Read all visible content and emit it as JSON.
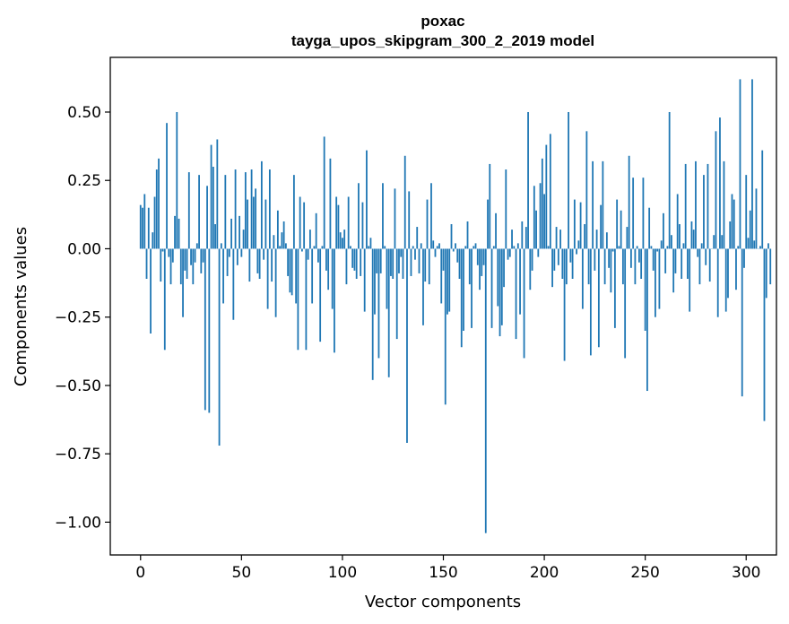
{
  "chart_data": {
    "type": "bar",
    "title": "poxac",
    "subtitle": "tayga_upos_skipgram_300_2_2019 model",
    "xlabel": "Vector components",
    "ylabel": "Components values",
    "xlim": [
      -15,
      315
    ],
    "ylim": [
      -1.12,
      0.7
    ],
    "xticks": [
      0,
      50,
      100,
      150,
      200,
      250,
      300
    ],
    "xtick_labels": [
      "0",
      "50",
      "100",
      "150",
      "200",
      "250",
      "300"
    ],
    "yticks": [
      0.5,
      0.25,
      0.0,
      -0.25,
      -0.5,
      -0.75,
      -1.0
    ],
    "ytick_labels": [
      "0.50",
      "0.25",
      "0.00",
      "−0.25",
      "−0.50",
      "−0.75",
      "−1.00"
    ],
    "bar_color": "#1f77b4",
    "grid": false,
    "values": [
      0.16,
      0.15,
      0.2,
      -0.11,
      0.15,
      -0.31,
      0.06,
      0.19,
      0.29,
      0.33,
      -0.12,
      -0.01,
      -0.37,
      0.46,
      -0.03,
      -0.13,
      -0.05,
      0.12,
      0.5,
      0.11,
      -0.13,
      -0.25,
      -0.08,
      -0.11,
      0.28,
      -0.06,
      -0.13,
      -0.05,
      0.02,
      0.27,
      -0.09,
      -0.05,
      -0.59,
      0.23,
      -0.6,
      0.38,
      0.3,
      0.09,
      0.4,
      -0.72,
      0.02,
      -0.2,
      0.27,
      -0.1,
      -0.03,
      0.11,
      -0.26,
      0.29,
      -0.06,
      0.12,
      -0.03,
      0.07,
      0.28,
      0.18,
      -0.12,
      0.29,
      0.19,
      0.22,
      -0.09,
      -0.11,
      0.32,
      -0.04,
      0.18,
      -0.22,
      0.29,
      -0.12,
      0.05,
      -0.25,
      0.14,
      0.01,
      0.06,
      0.1,
      0.02,
      -0.1,
      -0.16,
      -0.17,
      0.27,
      -0.2,
      -0.37,
      0.19,
      -0.01,
      0.17,
      -0.37,
      -0.04,
      0.07,
      -0.2,
      0.01,
      0.13,
      -0.05,
      -0.34,
      0.01,
      0.41,
      -0.08,
      -0.15,
      0.33,
      -0.22,
      -0.38,
      0.19,
      0.16,
      0.06,
      0.04,
      0.07,
      -0.13,
      0.19,
      0.01,
      -0.07,
      -0.08,
      -0.11,
      0.24,
      -0.1,
      0.17,
      -0.23,
      0.36,
      0.01,
      0.04,
      -0.48,
      -0.24,
      -0.09,
      -0.4,
      -0.09,
      0.24,
      0.01,
      -0.22,
      -0.47,
      -0.1,
      -0.11,
      0.22,
      -0.33,
      -0.09,
      -0.03,
      -0.11,
      0.34,
      -0.71,
      0.21,
      -0.1,
      0.01,
      -0.04,
      0.08,
      -0.09,
      0.02,
      -0.28,
      -0.12,
      0.18,
      -0.13,
      0.24,
      0.03,
      -0.03,
      0.01,
      0.02,
      -0.2,
      -0.08,
      -0.57,
      -0.24,
      -0.23,
      0.09,
      -0.01,
      0.02,
      -0.05,
      -0.11,
      -0.36,
      -0.3,
      0.01,
      0.1,
      -0.13,
      -0.29,
      0.01,
      0.02,
      -0.06,
      -0.15,
      -0.1,
      -0.06,
      -1.04,
      0.18,
      0.31,
      -0.29,
      0.01,
      0.13,
      -0.21,
      -0.32,
      -0.28,
      -0.14,
      0.29,
      -0.04,
      -0.03,
      0.07,
      0.01,
      -0.33,
      0.02,
      -0.24,
      0.1,
      -0.4,
      0.08,
      0.5,
      -0.15,
      -0.08,
      0.23,
      0.14,
      -0.03,
      0.24,
      0.33,
      0.2,
      0.38,
      0.01,
      0.42,
      -0.14,
      -0.08,
      0.08,
      -0.06,
      0.07,
      -0.11,
      -0.41,
      -0.13,
      0.5,
      -0.05,
      -0.11,
      0.18,
      -0.02,
      0.03,
      0.17,
      -0.22,
      0.09,
      0.43,
      -0.13,
      -0.39,
      0.32,
      -0.08,
      0.07,
      -0.36,
      0.16,
      0.32,
      -0.13,
      0.06,
      -0.07,
      -0.16,
      -0.01,
      -0.29,
      0.18,
      0.01,
      0.14,
      -0.13,
      -0.4,
      0.08,
      0.34,
      -0.07,
      0.26,
      -0.13,
      0.01,
      -0.05,
      -0.11,
      0.26,
      -0.3,
      -0.52,
      0.15,
      0.01,
      -0.08,
      -0.25,
      -0.01,
      -0.22,
      0.03,
      0.13,
      -0.09,
      0.01,
      0.5,
      0.05,
      -0.16,
      -0.09,
      0.2,
      0.09,
      -0.11,
      0.02,
      0.31,
      -0.11,
      -0.23,
      0.1,
      0.07,
      0.32,
      -0.03,
      -0.13,
      0.02,
      0.27,
      -0.06,
      0.31,
      -0.12,
      0.0,
      0.05,
      0.43,
      -0.25,
      0.48,
      0.05,
      0.32,
      -0.23,
      -0.18,
      0.1,
      0.2,
      0.18,
      -0.15,
      0.01,
      0.62,
      -0.54,
      -0.07,
      0.27,
      0.04,
      0.14,
      0.62,
      0.03,
      0.22,
      0.0,
      0.01,
      0.36,
      -0.63,
      -0.18,
      0.02,
      -0.13
    ]
  }
}
